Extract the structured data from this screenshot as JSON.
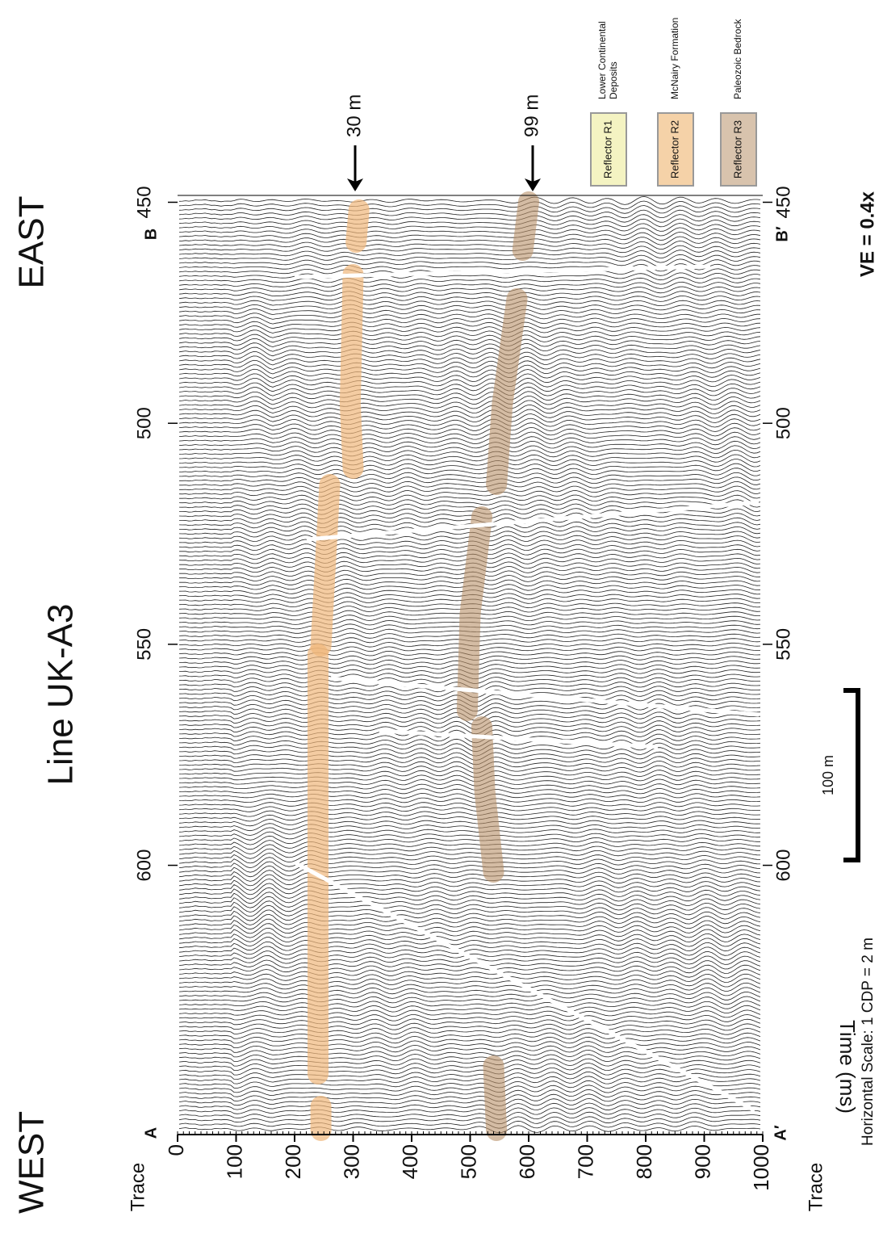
{
  "figure": {
    "title": "Line UK-A3",
    "west": "WEST",
    "east": "EAST",
    "time_axis": {
      "label": "Time (ms)",
      "lim": [
        0,
        1000
      ],
      "ticks": [
        0,
        100,
        200,
        300,
        400,
        500,
        600,
        700,
        800,
        900,
        1000
      ]
    },
    "trace_axis": {
      "label": "Trace",
      "lim": [
        660,
        449
      ],
      "ticks": [
        600,
        550,
        500,
        450
      ]
    },
    "markers": {
      "a_top": "A",
      "a_bottom": "A′",
      "b_top": "B",
      "b_bottom": "B′"
    },
    "depth_labels": [
      "30 m",
      "99 m"
    ],
    "scale_bar": "100 m",
    "horizontal_scale": "Horizontal Scale: 1 CDP = 2 m",
    "ve": "VE = 0.4x",
    "legend": [
      {
        "name": "Reflector R1",
        "description": [
          "Lower Continental",
          "Deposits"
        ],
        "color": "#f4f3c2"
      },
      {
        "name": "Reflector R2",
        "description": [
          "McNairy Formation"
        ],
        "color": "#f5d2a8"
      },
      {
        "name": "Reflector R3",
        "description": [
          "Paleozoic Bedrock"
        ],
        "color": "#d8c3ad"
      }
    ]
  }
}
